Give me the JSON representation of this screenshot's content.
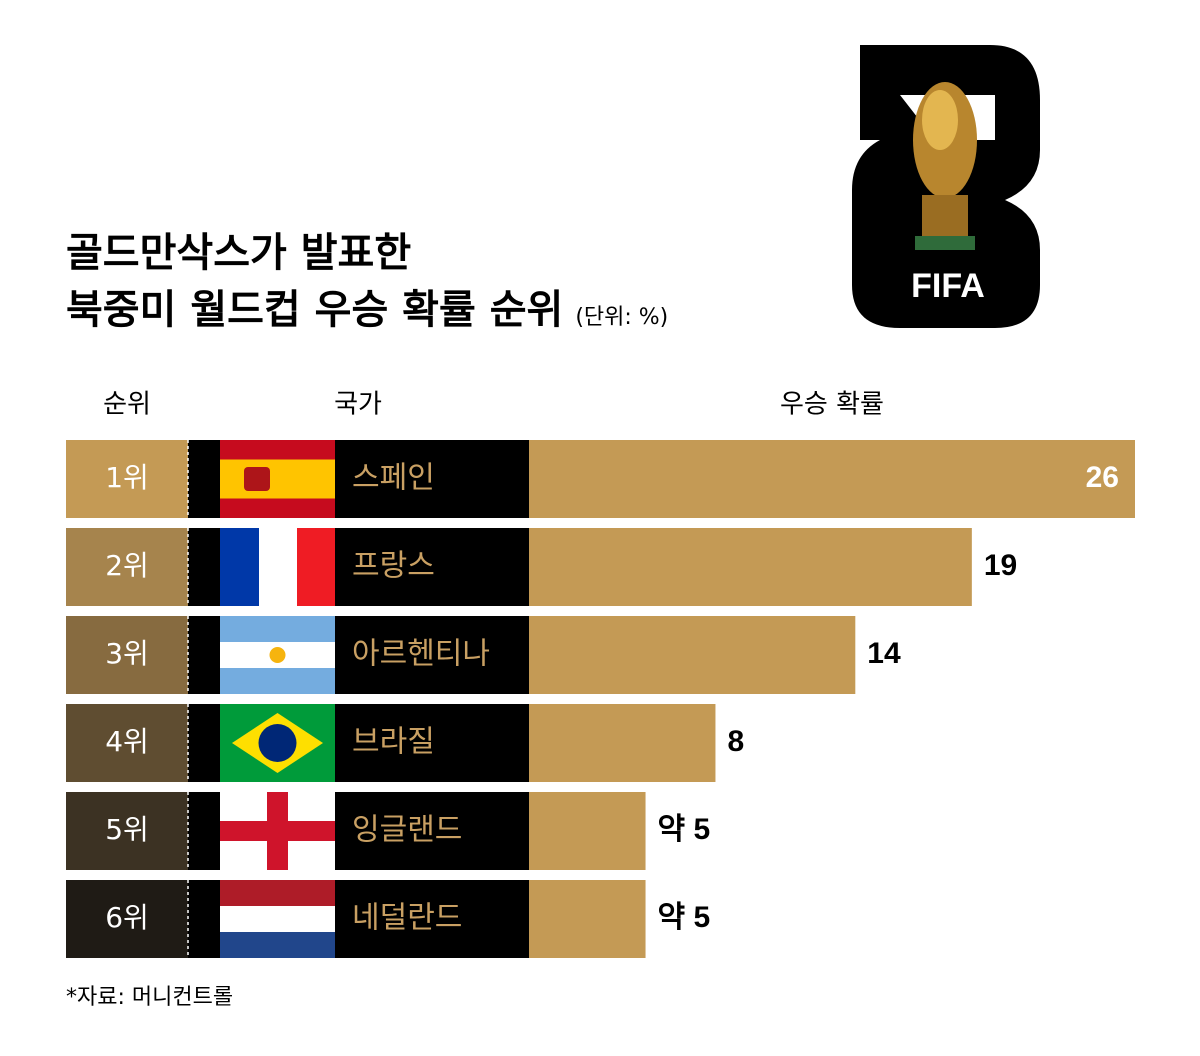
{
  "chart_data": {
    "type": "bar",
    "title": [
      "골드만삭스가 발표한",
      "북중미 월드컵 우승 확률 순위"
    ],
    "unit": "(단위: %)",
    "headers": [
      "순위",
      "국가",
      "우승 확률"
    ],
    "ranks": [
      "1위",
      "2위",
      "3위",
      "4위",
      "5위",
      "6위"
    ],
    "categories": [
      "스페인",
      "프랑스",
      "아르헨티나",
      "브라질",
      "잉글랜드",
      "네덜란드"
    ],
    "values": [
      26,
      19,
      14,
      8,
      5,
      5
    ],
    "value_labels": [
      "26",
      "19",
      "14",
      "8",
      "약 5",
      "약 5"
    ],
    "color": "#c49a55",
    "source": "*자료: 머니컨트롤"
  },
  "logo": {
    "text": "FIFA"
  }
}
